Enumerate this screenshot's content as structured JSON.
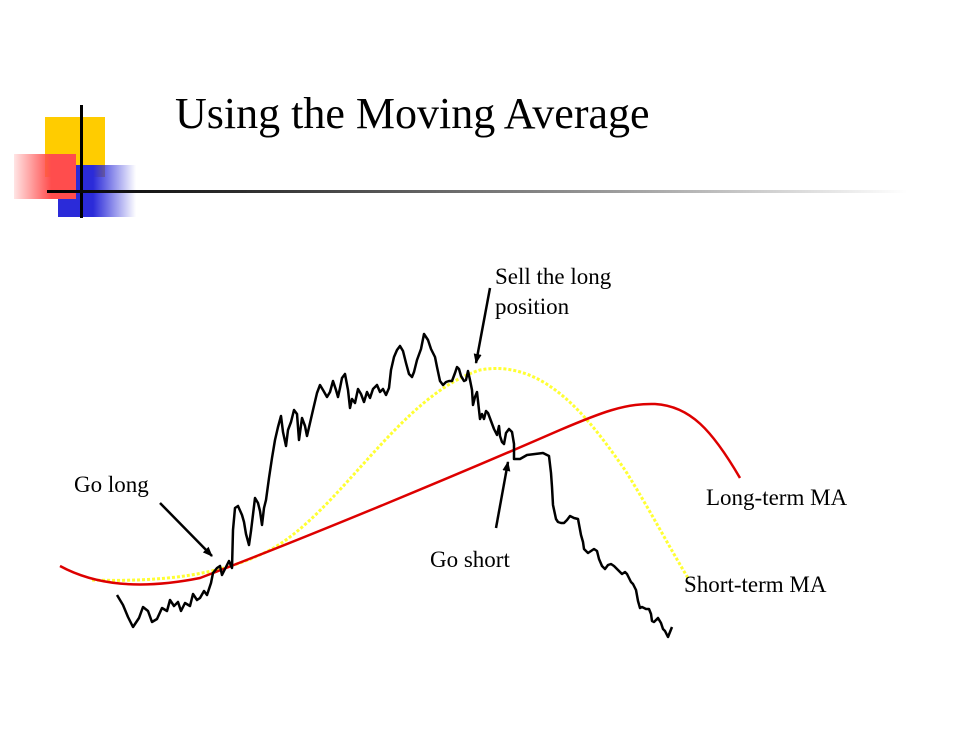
{
  "slide": {
    "title": "Using the Moving Average"
  },
  "labels": {
    "sell_line1": "Sell the long",
    "sell_line2": "position",
    "go_long": "Go long",
    "go_short": "Go short",
    "long_term_ma": "Long-term MA",
    "short_term_ma": "Short-term MA"
  },
  "colors": {
    "price": "#000000",
    "long_term_ma": "#dd0000",
    "short_term_ma": "#ffff33",
    "accent_yellow": "#ffcc00",
    "accent_blue": "#2b2bd9",
    "accent_red": "#ff4d4d"
  }
}
